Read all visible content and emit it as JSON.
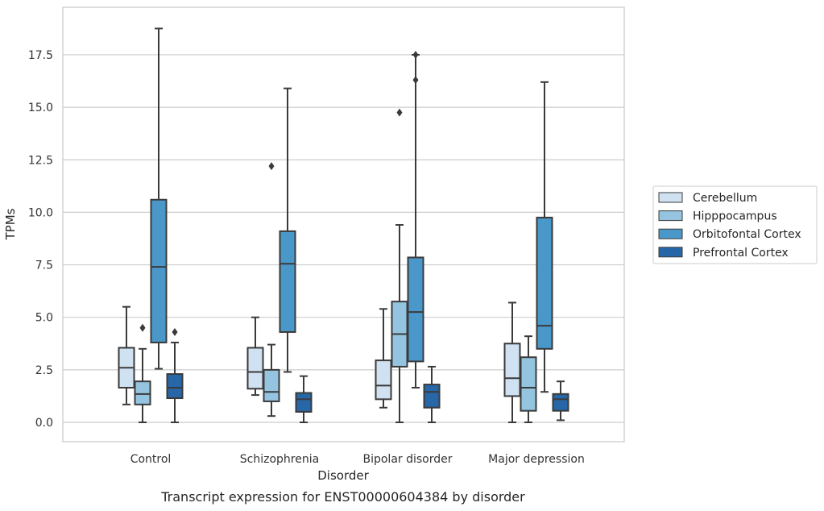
{
  "caption": "Transcript expression for ENST00000604384 by disorder",
  "chart_data": {
    "type": "box",
    "title": "",
    "xlabel": "Disorder",
    "ylabel": "TPMs",
    "ylim": [
      -0.9,
      19.7
    ],
    "yticks": [
      "0.0",
      "2.5",
      "5.0",
      "7.5",
      "10.0",
      "12.5",
      "15.0",
      "17.5"
    ],
    "grid": true,
    "legend_placement": "right",
    "categories": [
      "Control",
      "Schizophrenia",
      "Bipolar disorder",
      "Major depression"
    ],
    "series": [
      {
        "name": "Cerebellum",
        "color": "#d0e1f2",
        "boxes": [
          {
            "min": 0.85,
            "q1": 1.65,
            "median": 2.6,
            "q3": 3.55,
            "max": 5.5,
            "outliers": []
          },
          {
            "min": 1.3,
            "q1": 1.6,
            "median": 2.4,
            "q3": 3.55,
            "max": 5.0,
            "outliers": []
          },
          {
            "min": 0.7,
            "q1": 1.1,
            "median": 1.75,
            "q3": 2.95,
            "max": 5.4,
            "outliers": []
          },
          {
            "min": 0.0,
            "q1": 1.25,
            "median": 2.1,
            "q3": 3.75,
            "max": 5.7,
            "outliers": []
          }
        ]
      },
      {
        "name": "Hipppocampus",
        "color": "#94c4df",
        "boxes": [
          {
            "min": 0.0,
            "q1": 0.85,
            "median": 1.35,
            "q3": 1.95,
            "max": 3.5,
            "outliers": [
              4.5
            ]
          },
          {
            "min": 0.3,
            "q1": 1.0,
            "median": 1.45,
            "q3": 2.5,
            "max": 3.7,
            "outliers": [
              12.2
            ]
          },
          {
            "min": 0.0,
            "q1": 2.65,
            "median": 4.2,
            "q3": 5.75,
            "max": 9.4,
            "outliers": [
              14.75
            ]
          },
          {
            "min": 0.0,
            "q1": 0.55,
            "median": 1.65,
            "q3": 3.1,
            "max": 4.1,
            "outliers": []
          }
        ]
      },
      {
        "name": "Orbitofontal Cortex",
        "color": "#4a98c9",
        "boxes": [
          {
            "min": 2.55,
            "q1": 3.8,
            "median": 7.4,
            "q3": 10.6,
            "max": 18.75,
            "outliers": []
          },
          {
            "min": 2.4,
            "q1": 4.3,
            "median": 7.55,
            "q3": 9.1,
            "max": 15.9,
            "outliers": []
          },
          {
            "min": 1.65,
            "q1": 2.9,
            "median": 5.25,
            "q3": 7.85,
            "max": 17.5,
            "outliers": [
              16.3,
              17.5
            ]
          },
          {
            "min": 1.45,
            "q1": 3.5,
            "median": 4.6,
            "q3": 9.75,
            "max": 16.2,
            "outliers": []
          }
        ]
      },
      {
        "name": "Prefrontal Cortex",
        "color": "#2767a7",
        "boxes": [
          {
            "min": 0.0,
            "q1": 1.15,
            "median": 1.65,
            "q3": 2.3,
            "max": 3.8,
            "outliers": [
              4.3
            ]
          },
          {
            "min": 0.0,
            "q1": 0.5,
            "median": 1.1,
            "q3": 1.4,
            "max": 2.2,
            "outliers": []
          },
          {
            "min": 0.0,
            "q1": 0.7,
            "median": 1.45,
            "q3": 1.8,
            "max": 2.65,
            "outliers": []
          },
          {
            "min": 0.1,
            "q1": 0.55,
            "median": 1.1,
            "q3": 1.35,
            "max": 1.95,
            "outliers": []
          }
        ]
      }
    ]
  }
}
